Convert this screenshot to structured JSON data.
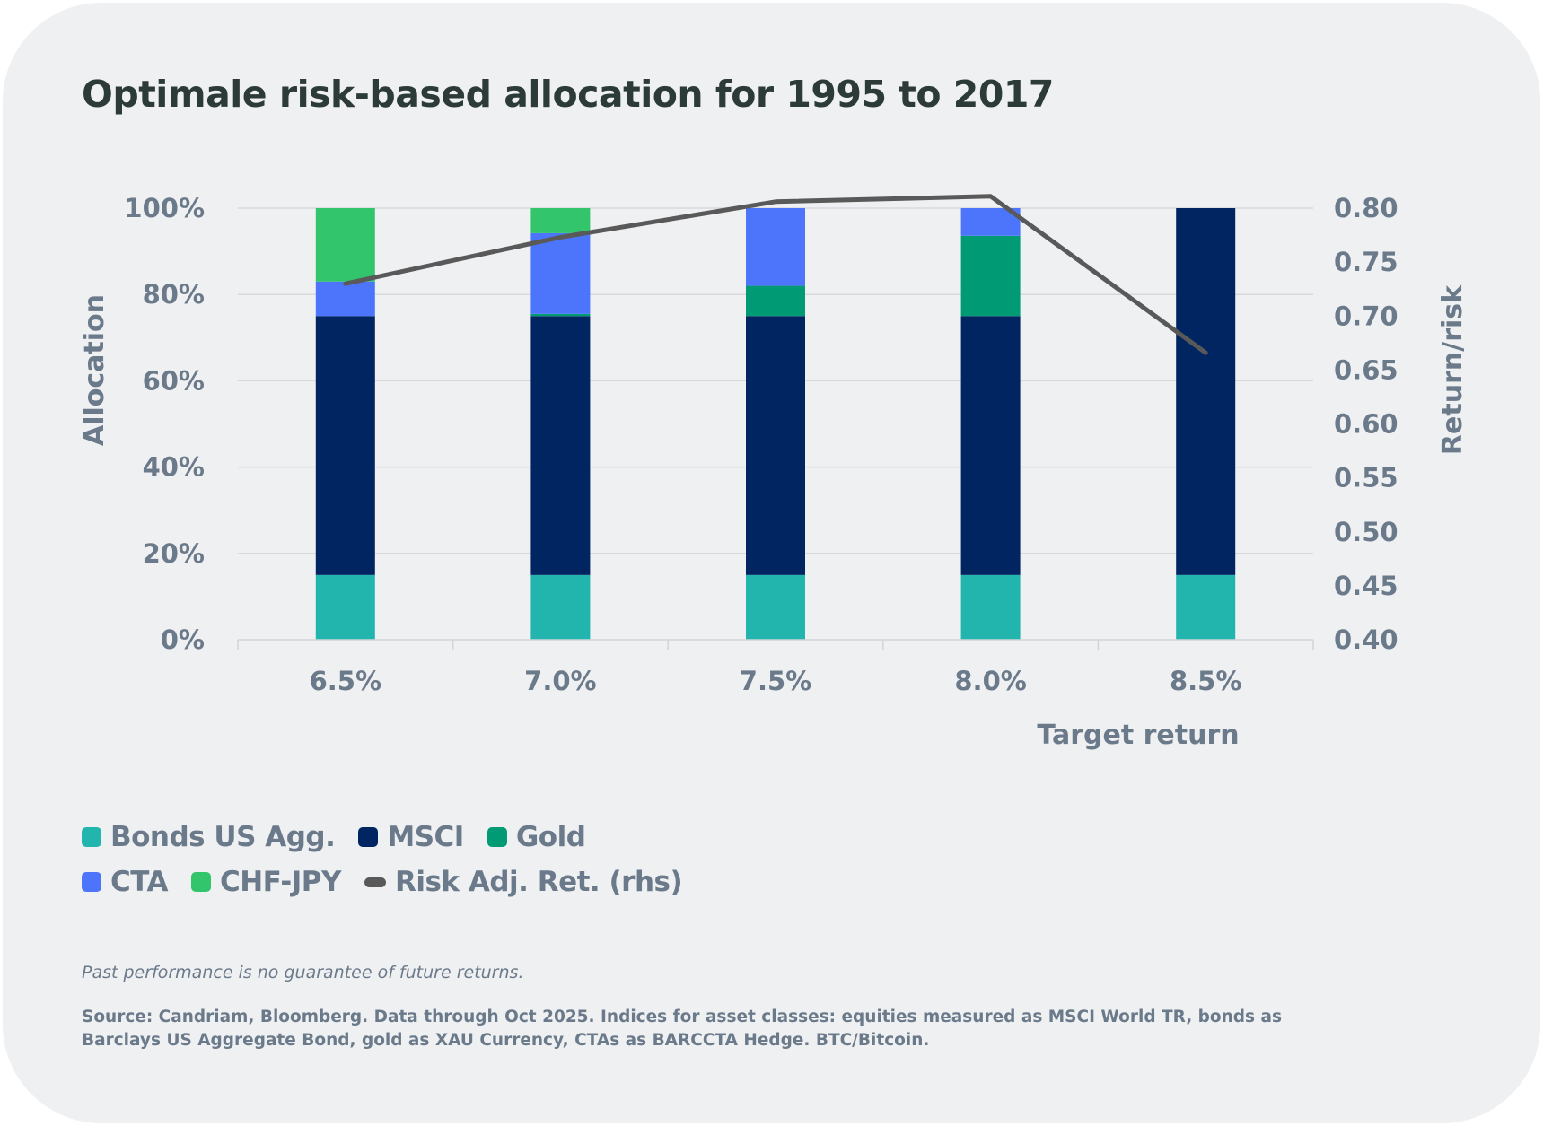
{
  "chart_data": {
    "type": "bar",
    "stacked": true,
    "title": "Optimale risk-based allocation for 1995 to 2017",
    "xlabel": "Target return",
    "ylabel": "Allocation",
    "y2label": "Return/risk",
    "categories": [
      "6.5%",
      "7.0%",
      "7.5%",
      "8.0%",
      "8.5%"
    ],
    "ylim": [
      0,
      100
    ],
    "yticks": [
      "0%",
      "20%",
      "40%",
      "60%",
      "80%",
      "100%"
    ],
    "ytick_values": [
      0,
      20,
      40,
      60,
      80,
      100
    ],
    "y2lim": [
      0.4,
      0.8
    ],
    "y2ticks": [
      "0.40",
      "0.45",
      "0.50",
      "0.55",
      "0.60",
      "0.65",
      "0.70",
      "0.75",
      "0.80"
    ],
    "y2tick_values": [
      0.4,
      0.45,
      0.5,
      0.55,
      0.6,
      0.65,
      0.7,
      0.75,
      0.8
    ],
    "grid": true,
    "legend_position": "bottom-left",
    "series": [
      {
        "name": "Bonds US Agg.",
        "color": "#22b5ae",
        "values": [
          15,
          15,
          15,
          15,
          15
        ]
      },
      {
        "name": "MSCI",
        "color": "#002561",
        "values": [
          60,
          60,
          60,
          60,
          85
        ]
      },
      {
        "name": "Gold",
        "color": "#009b74",
        "values": [
          0,
          0.5,
          7,
          18.6,
          0
        ]
      },
      {
        "name": "CTA",
        "color": "#4d75fb",
        "values": [
          8,
          18.7,
          18,
          6.4,
          0
        ]
      },
      {
        "name": "CHF-JPY",
        "color": "#33c56b",
        "values": [
          17,
          5.8,
          0,
          0,
          0
        ]
      }
    ],
    "line_series": {
      "name": "Risk Adj. Ret. (rhs)",
      "color": "#595959",
      "axis": "right",
      "values": [
        0.73,
        0.773,
        0.806,
        0.811,
        0.666
      ]
    }
  },
  "legend": [
    {
      "label": "Bonds US Agg.",
      "color": "#22b5ae",
      "kind": "box"
    },
    {
      "label": "MSCI",
      "color": "#002561",
      "kind": "box"
    },
    {
      "label": "Gold",
      "color": "#009b74",
      "kind": "box"
    },
    {
      "label": "CTA",
      "color": "#4d75fb",
      "kind": "box"
    },
    {
      "label": "CHF-JPY",
      "color": "#33c56b",
      "kind": "box"
    },
    {
      "label": "Risk Adj. Ret. (rhs)",
      "color": "#595959",
      "kind": "line"
    }
  ],
  "footer": {
    "disclaimer": "Past performance is no guarantee of future returns.",
    "source": "Source: Candriam, Bloomberg. Data through Oct 2025. Indices for asset classes: equities measured as MSCI World TR, bonds as Barclays US Aggregate Bond, gold as XAU Currency, CTAs as BARCCTA Hedge. BTC/Bitcoin."
  }
}
